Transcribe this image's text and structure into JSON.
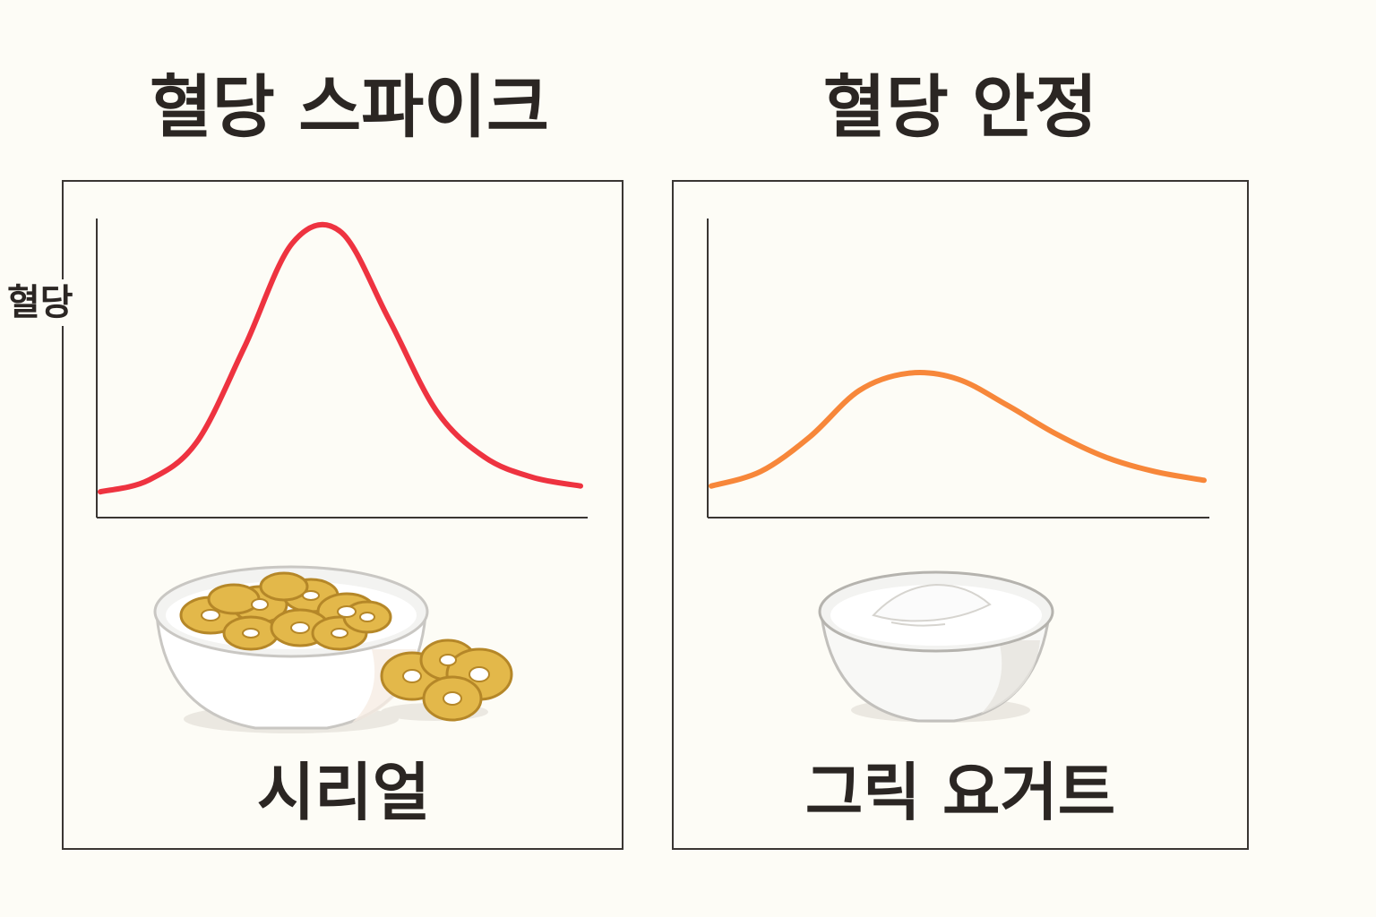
{
  "titles": {
    "left": "혈당 스파이크",
    "right": "혈당 안정"
  },
  "captions": {
    "left": "시리얼",
    "right": "그릭 요거트"
  },
  "chart_data": [
    {
      "type": "line",
      "title": "혈당 스파이크",
      "ylabel": "혈당",
      "xlabel": "",
      "x": [
        0,
        1,
        2,
        3,
        4,
        5,
        6,
        7,
        8,
        9,
        10
      ],
      "series": [
        {
          "values": [
            0.08,
            0.12,
            0.25,
            0.58,
            0.94,
            0.98,
            0.68,
            0.36,
            0.2,
            0.13,
            0.1
          ]
        }
      ],
      "ylim": [
        0,
        1.05
      ],
      "grid": false,
      "color": "#ee3340"
    },
    {
      "type": "line",
      "title": "혈당 안정",
      "xlabel": "",
      "ylabel": "",
      "x": [
        0,
        1,
        2,
        3,
        4,
        5,
        6,
        7,
        8,
        9,
        10
      ],
      "series": [
        {
          "values": [
            0.1,
            0.15,
            0.27,
            0.43,
            0.49,
            0.47,
            0.38,
            0.28,
            0.2,
            0.15,
            0.12
          ]
        }
      ],
      "ylim": [
        0,
        1.05
      ],
      "grid": false,
      "color": "#f7873a"
    }
  ],
  "icons": {
    "left": "cereal-bowl-icon",
    "right": "yogurt-bowl-icon"
  }
}
